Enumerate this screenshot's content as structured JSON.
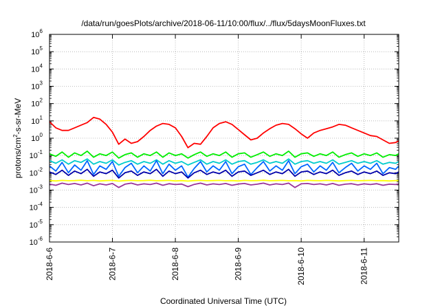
{
  "chart_data": {
    "type": "line",
    "title": "/data/run/goesPlots/archive/2018-06-11/10:00/flux/../flux/5daysMoonFluxes.txt",
    "xlabel": "Coordinated Universal Time (UTC)",
    "ylabel_parts": [
      "protons/cm",
      "2",
      "-s-sr-MeV"
    ],
    "y_scale": "log",
    "y_exponent_range": [
      -6,
      6
    ],
    "y_tick_base": "10",
    "y_tick_exponents": [
      "6",
      "5",
      "4",
      "3",
      "2",
      "1",
      "0",
      "-1",
      "-2",
      "-3",
      "-4",
      "-5",
      "-6"
    ],
    "x_range_days": [
      0,
      5.55
    ],
    "x_tick_labels": [
      "2018-6-6",
      "2018-6-7",
      "2018-6-8",
      "2018-6-9",
      "2018-6-10",
      "2018-6-11"
    ],
    "grid": true,
    "legend": "none",
    "series": [
      {
        "color": "#ff0000",
        "x": [
          0.0,
          0.1,
          0.2,
          0.3,
          0.4,
          0.5,
          0.6,
          0.7,
          0.8,
          0.9,
          1.0,
          1.1,
          1.2,
          1.3,
          1.4,
          1.5,
          1.6,
          1.7,
          1.8,
          1.9,
          2.0,
          2.1,
          2.2,
          2.3,
          2.4,
          2.5,
          2.6,
          2.7,
          2.8,
          2.9,
          3.0,
          3.1,
          3.2,
          3.3,
          3.4,
          3.5,
          3.6,
          3.7,
          3.8,
          3.9,
          4.0,
          4.1,
          4.2,
          4.3,
          4.4,
          4.5,
          4.6,
          4.7,
          4.8,
          4.9,
          5.0,
          5.1,
          5.2,
          5.3,
          5.4,
          5.5,
          5.55
        ],
        "y_log10": [
          0.95,
          0.6,
          0.45,
          0.45,
          0.6,
          0.75,
          0.9,
          1.2,
          1.1,
          0.8,
          0.35,
          -0.35,
          -0.05,
          -0.3,
          -0.2,
          0.1,
          0.45,
          0.7,
          0.85,
          0.8,
          0.6,
          0.1,
          -0.55,
          -0.3,
          -0.35,
          0.1,
          0.6,
          0.85,
          0.95,
          0.8,
          0.5,
          0.2,
          -0.1,
          0.0,
          0.3,
          0.55,
          0.75,
          0.85,
          0.8,
          0.55,
          0.25,
          0.0,
          0.3,
          0.45,
          0.55,
          0.65,
          0.8,
          0.75,
          0.6,
          0.45,
          0.3,
          0.15,
          0.1,
          -0.1,
          -0.3,
          -0.25,
          -0.15
        ]
      },
      {
        "color": "#00ee00",
        "x": [
          0.0,
          0.1,
          0.2,
          0.3,
          0.4,
          0.5,
          0.6,
          0.7,
          0.8,
          0.9,
          1.0,
          1.1,
          1.2,
          1.3,
          1.4,
          1.5,
          1.6,
          1.7,
          1.8,
          1.9,
          2.0,
          2.1,
          2.2,
          2.3,
          2.4,
          2.5,
          2.6,
          2.7,
          2.8,
          2.9,
          3.0,
          3.1,
          3.2,
          3.3,
          3.4,
          3.5,
          3.6,
          3.7,
          3.8,
          3.9,
          4.0,
          4.1,
          4.2,
          4.3,
          4.4,
          4.5,
          4.6,
          4.7,
          4.8,
          4.9,
          5.0,
          5.1,
          5.2,
          5.3,
          5.4,
          5.5,
          5.55
        ],
        "y_log10": [
          -0.9,
          -1.05,
          -0.8,
          -1.1,
          -0.85,
          -1.0,
          -0.75,
          -1.1,
          -0.9,
          -1.0,
          -0.8,
          -1.15,
          -0.95,
          -0.85,
          -1.1,
          -0.9,
          -1.0,
          -0.8,
          -1.1,
          -0.85,
          -1.0,
          -0.9,
          -1.15,
          -0.95,
          -0.8,
          -1.05,
          -0.9,
          -1.0,
          -0.8,
          -1.1,
          -0.9,
          -0.85,
          -1.1,
          -0.95,
          -0.8,
          -1.05,
          -0.9,
          -1.0,
          -0.75,
          -1.1,
          -0.9,
          -0.85,
          -1.05,
          -0.9,
          -1.0,
          -0.8,
          -1.1,
          -0.95,
          -0.85,
          -1.05,
          -0.9,
          -1.0,
          -0.85,
          -1.1,
          -0.95,
          -1.0,
          -0.9
        ]
      },
      {
        "color": "#00cccc",
        "x": [
          0.0,
          0.1,
          0.2,
          0.3,
          0.4,
          0.5,
          0.6,
          0.7,
          0.8,
          0.9,
          1.0,
          1.1,
          1.2,
          1.3,
          1.4,
          1.5,
          1.6,
          1.7,
          1.8,
          1.9,
          2.0,
          2.1,
          2.2,
          2.3,
          2.4,
          2.5,
          2.6,
          2.7,
          2.8,
          2.9,
          3.0,
          3.1,
          3.2,
          3.3,
          3.4,
          3.5,
          3.6,
          3.7,
          3.8,
          3.9,
          4.0,
          4.1,
          4.2,
          4.3,
          4.4,
          4.5,
          4.6,
          4.7,
          4.8,
          4.9,
          5.0,
          5.1,
          5.2,
          5.3,
          5.4,
          5.5,
          5.55
        ],
        "y_log10": [
          -1.3,
          -1.45,
          -1.25,
          -1.5,
          -1.3,
          -1.4,
          -1.2,
          -1.5,
          -1.35,
          -1.45,
          -1.25,
          -1.55,
          -1.4,
          -1.3,
          -1.5,
          -1.35,
          -1.45,
          -1.25,
          -1.5,
          -1.3,
          -1.45,
          -1.35,
          -1.55,
          -1.4,
          -1.25,
          -1.5,
          -1.35,
          -1.45,
          -1.25,
          -1.5,
          -1.35,
          -1.3,
          -1.5,
          -1.4,
          -1.25,
          -1.45,
          -1.35,
          -1.45,
          -1.2,
          -1.5,
          -1.35,
          -1.3,
          -1.45,
          -1.35,
          -1.45,
          -1.25,
          -1.5,
          -1.4,
          -1.3,
          -1.45,
          -1.35,
          -1.45,
          -1.3,
          -1.5,
          -1.4,
          -1.45,
          -1.35
        ]
      },
      {
        "color": "#0066ff",
        "x": [
          0.0,
          0.1,
          0.2,
          0.3,
          0.4,
          0.5,
          0.6,
          0.7,
          0.8,
          0.9,
          1.0,
          1.1,
          1.2,
          1.3,
          1.4,
          1.5,
          1.6,
          1.7,
          1.8,
          1.9,
          2.0,
          2.1,
          2.2,
          2.3,
          2.4,
          2.5,
          2.6,
          2.7,
          2.8,
          2.9,
          3.0,
          3.1,
          3.2,
          3.3,
          3.4,
          3.5,
          3.6,
          3.7,
          3.8,
          3.9,
          4.0,
          4.1,
          4.2,
          4.3,
          4.4,
          4.5,
          4.6,
          4.7,
          4.8,
          4.9,
          5.0,
          5.1,
          5.2,
          5.3,
          5.4,
          5.5,
          5.55
        ],
        "y_log10": [
          -1.6,
          -1.9,
          -1.4,
          -2.0,
          -1.55,
          -1.85,
          -1.3,
          -2.1,
          -1.6,
          -1.8,
          -1.35,
          -2.2,
          -1.7,
          -1.45,
          -2.0,
          -1.6,
          -1.9,
          -1.3,
          -2.05,
          -1.5,
          -1.85,
          -1.6,
          -2.25,
          -1.75,
          -1.35,
          -1.95,
          -1.6,
          -1.85,
          -1.35,
          -2.05,
          -1.65,
          -1.5,
          -2.1,
          -1.7,
          -1.35,
          -1.9,
          -1.6,
          -1.85,
          -1.3,
          -2.05,
          -1.65,
          -1.5,
          -1.95,
          -1.6,
          -1.85,
          -1.4,
          -2.0,
          -1.7,
          -1.45,
          -1.9,
          -1.6,
          -1.8,
          -1.45,
          -2.05,
          -1.7,
          -1.8,
          -1.6
        ]
      },
      {
        "color": "#0000aa",
        "x": [
          0.0,
          0.1,
          0.2,
          0.3,
          0.4,
          0.5,
          0.6,
          0.7,
          0.8,
          0.9,
          1.0,
          1.1,
          1.2,
          1.3,
          1.4,
          1.5,
          1.6,
          1.7,
          1.8,
          1.9,
          2.0,
          2.1,
          2.2,
          2.3,
          2.4,
          2.5,
          2.6,
          2.7,
          2.8,
          2.9,
          3.0,
          3.1,
          3.2,
          3.3,
          3.4,
          3.5,
          3.6,
          3.7,
          3.8,
          3.9,
          4.0,
          4.1,
          4.2,
          4.3,
          4.4,
          4.5,
          4.6,
          4.7,
          4.8,
          4.9,
          5.0,
          5.1,
          5.2,
          5.3,
          5.4,
          5.5,
          5.55
        ],
        "y_log10": [
          -1.95,
          -2.1,
          -1.85,
          -2.15,
          -1.9,
          -2.05,
          -1.8,
          -2.2,
          -1.95,
          -2.05,
          -1.85,
          -2.3,
          -2.0,
          -1.9,
          -2.15,
          -1.95,
          -2.05,
          -1.8,
          -2.2,
          -1.9,
          -2.05,
          -1.95,
          -2.3,
          -2.0,
          -1.85,
          -2.1,
          -1.95,
          -2.05,
          -1.85,
          -2.2,
          -1.95,
          -1.9,
          -2.15,
          -2.0,
          -1.85,
          -2.1,
          -1.95,
          -2.05,
          -1.8,
          -2.2,
          -1.95,
          -1.9,
          -2.1,
          -1.95,
          -2.05,
          -1.85,
          -2.15,
          -2.0,
          -1.9,
          -2.1,
          -1.95,
          -2.05,
          -1.9,
          -2.15,
          -2.0,
          -2.05,
          -1.95
        ]
      },
      {
        "color": "#ffff00",
        "x": [
          0.0,
          0.1,
          0.2,
          0.3,
          0.4,
          0.5,
          0.6,
          0.7,
          0.8,
          0.9,
          1.0,
          1.1,
          1.2,
          1.3,
          1.4,
          1.5,
          1.6,
          1.7,
          1.8,
          1.9,
          2.0,
          2.1,
          2.2,
          2.3,
          2.4,
          2.5,
          2.6,
          2.7,
          2.8,
          2.9,
          3.0,
          3.1,
          3.2,
          3.3,
          3.4,
          3.5,
          3.6,
          3.7,
          3.8,
          3.9,
          4.0,
          4.1,
          4.2,
          4.3,
          4.4,
          4.5,
          4.6,
          4.7,
          4.8,
          4.9,
          5.0,
          5.1,
          5.2,
          5.3,
          5.4,
          5.5,
          5.55
        ],
        "y_log10": [
          -2.45,
          -2.47,
          -2.44,
          -2.46,
          -2.45,
          -2.43,
          -2.46,
          -2.44,
          -2.47,
          -2.45,
          -2.44,
          -2.48,
          -2.45,
          -2.44,
          -2.46,
          -2.45,
          -2.43,
          -2.46,
          -2.45,
          -2.44,
          -2.47,
          -2.45,
          -2.48,
          -2.45,
          -2.44,
          -2.46,
          -2.45,
          -2.44,
          -2.46,
          -2.45,
          -2.47,
          -2.44,
          -2.46,
          -2.45,
          -2.43,
          -2.46,
          -2.45,
          -2.44,
          -2.46,
          -2.45,
          -2.47,
          -2.44,
          -2.45,
          -2.46,
          -2.44,
          -2.45,
          -2.47,
          -2.45,
          -2.44,
          -2.46,
          -2.45,
          -2.44,
          -2.46,
          -2.45,
          -2.47,
          -2.45,
          -2.45
        ]
      },
      {
        "color": "#993399",
        "x": [
          0.0,
          0.1,
          0.2,
          0.3,
          0.4,
          0.5,
          0.6,
          0.7,
          0.8,
          0.9,
          1.0,
          1.1,
          1.2,
          1.3,
          1.4,
          1.5,
          1.6,
          1.7,
          1.8,
          1.9,
          2.0,
          2.1,
          2.2,
          2.3,
          2.4,
          2.5,
          2.6,
          2.7,
          2.8,
          2.9,
          3.0,
          3.1,
          3.2,
          3.3,
          3.4,
          3.5,
          3.6,
          3.7,
          3.8,
          3.9,
          4.0,
          4.1,
          4.2,
          4.3,
          4.4,
          4.5,
          4.6,
          4.7,
          4.8,
          4.9,
          5.0,
          5.1,
          5.2,
          5.3,
          5.4,
          5.5,
          5.55
        ],
        "y_log10": [
          -2.65,
          -2.72,
          -2.6,
          -2.68,
          -2.62,
          -2.7,
          -2.6,
          -2.75,
          -2.64,
          -2.7,
          -2.62,
          -2.85,
          -2.66,
          -2.6,
          -2.7,
          -2.64,
          -2.68,
          -2.6,
          -2.72,
          -2.63,
          -2.68,
          -2.65,
          -2.8,
          -2.67,
          -2.6,
          -2.7,
          -2.64,
          -2.68,
          -2.62,
          -2.72,
          -2.65,
          -2.62,
          -2.7,
          -2.66,
          -2.6,
          -2.7,
          -2.64,
          -2.68,
          -2.6,
          -2.85,
          -2.64,
          -2.62,
          -2.68,
          -2.64,
          -2.7,
          -2.62,
          -2.72,
          -2.66,
          -2.63,
          -2.7,
          -2.64,
          -2.68,
          -2.63,
          -2.72,
          -2.66,
          -2.68,
          -2.64
        ]
      }
    ]
  }
}
